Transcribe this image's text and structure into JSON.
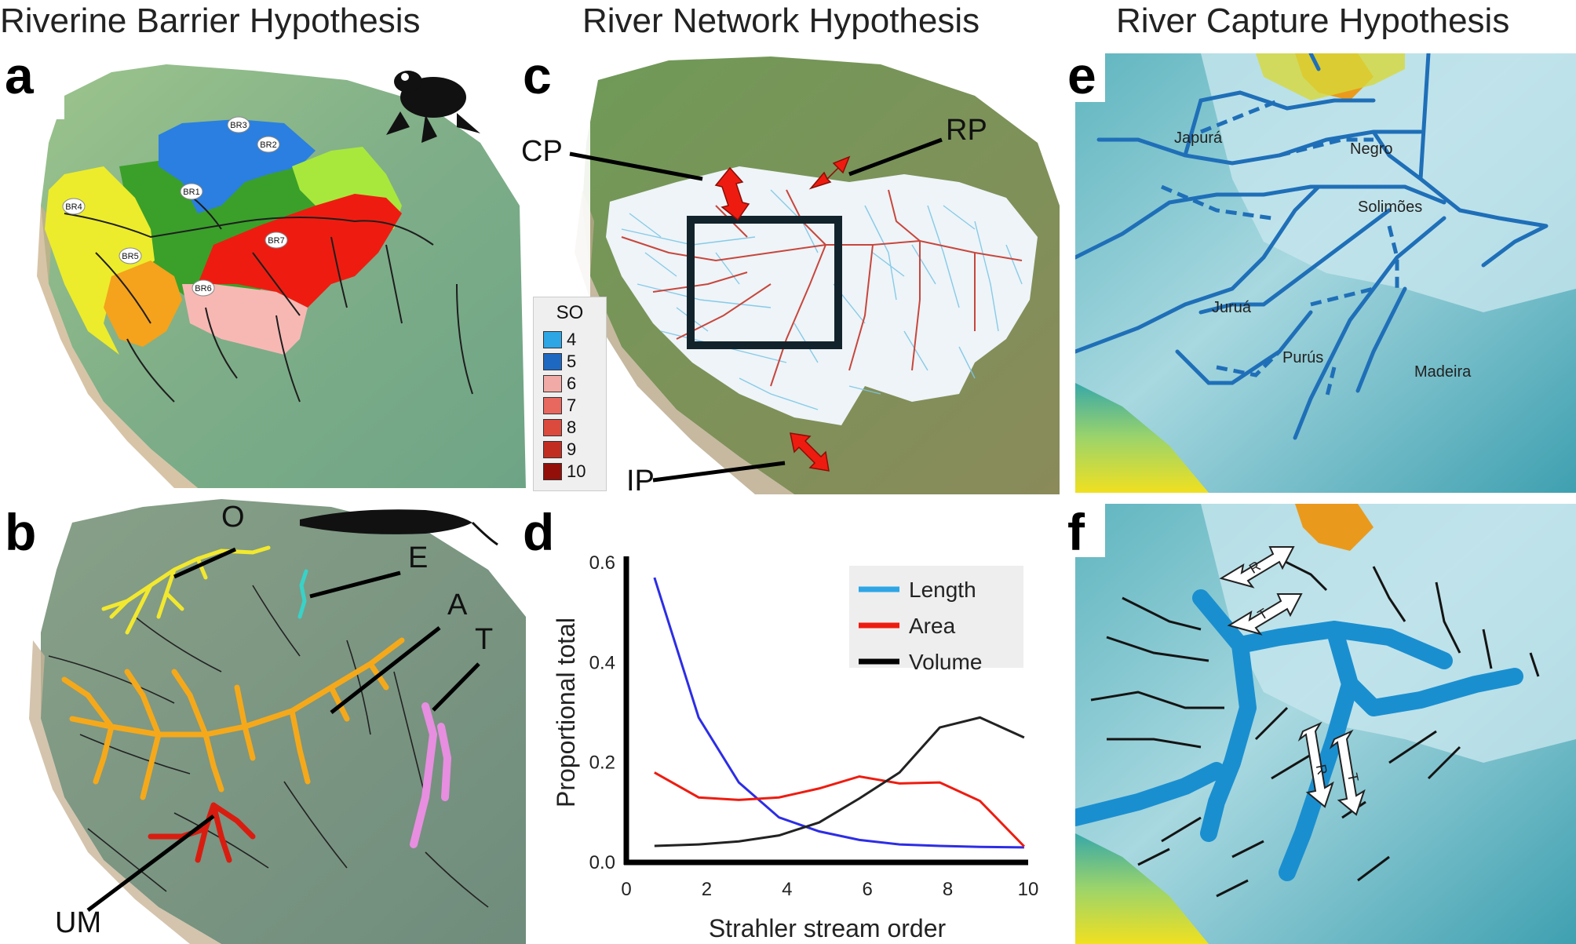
{
  "titles": {
    "riverine": "Riverine Barrier Hypothesis",
    "network": "River Network Hypothesis",
    "capture": "River Capture Hypothesis"
  },
  "panel_letters": {
    "a": "a",
    "b": "b",
    "c": "c",
    "d": "d",
    "e": "e",
    "f": "f"
  },
  "panel_a": {
    "regions": [
      "BR1",
      "BR2",
      "BR3",
      "BR4",
      "BR5",
      "BR6",
      "BR7"
    ],
    "colors": {
      "BR1": "#3aa02a",
      "BR2": "#a8e83c",
      "BR3": "#2a7fe0",
      "BR4": "#ecec2c",
      "BR5": "#f5a21c",
      "BR6": "#f7b8b4",
      "BR7": "#ee1c10"
    }
  },
  "panel_b": {
    "labels": {
      "o": "O",
      "e": "E",
      "a": "A",
      "t": "T",
      "um": "UM"
    },
    "colors": {
      "O": "#f2e82e",
      "E": "#38d2c8",
      "A": "#f5a91a",
      "T": "#e78ee0",
      "UM": "#d81d10"
    }
  },
  "panel_c": {
    "callouts": {
      "cp": "CP",
      "rp": "RP",
      "ip": "IP"
    },
    "legend_title": "SO",
    "legend": [
      {
        "label": "4",
        "color": "#2ea6e6"
      },
      {
        "label": "5",
        "color": "#1f68c2"
      },
      {
        "label": "6",
        "color": "#f2aaa6"
      },
      {
        "label": "7",
        "color": "#e8675f"
      },
      {
        "label": "8",
        "color": "#dc4a3e"
      },
      {
        "label": "9",
        "color": "#c22d22"
      },
      {
        "label": "10",
        "color": "#920f0a"
      }
    ]
  },
  "chart_data": {
    "type": "line",
    "title": "",
    "xlabel": "Strahler stream order",
    "ylabel": "Proportional total",
    "xlim": [
      0,
      10
    ],
    "ylim": [
      0,
      0.6
    ],
    "xticks": [
      "0",
      "2",
      "4",
      "6",
      "8",
      "10"
    ],
    "yticks": [
      "0.0",
      "0.2",
      "0.4",
      "0.6"
    ],
    "legend_position": "top-right",
    "legend_colors": {
      "Length": "#2ea6e6",
      "Area": "#ee1c10",
      "Volume": "#000000"
    },
    "series": [
      {
        "name": "Length",
        "color": "#2d2de6",
        "x": [
          0.7,
          1.8,
          2.8,
          3.8,
          4.8,
          5.8,
          6.8,
          7.8,
          8.8,
          9.9
        ],
        "y": [
          0.57,
          0.29,
          0.16,
          0.09,
          0.062,
          0.045,
          0.036,
          0.033,
          0.031,
          0.03
        ]
      },
      {
        "name": "Area",
        "color": "#ee1c10",
        "x": [
          0.7,
          1.8,
          2.8,
          3.8,
          4.8,
          5.8,
          6.8,
          7.8,
          8.8,
          9.9
        ],
        "y": [
          0.18,
          0.13,
          0.125,
          0.13,
          0.148,
          0.172,
          0.158,
          0.16,
          0.123,
          0.032
        ]
      },
      {
        "name": "Volume",
        "color": "#222222",
        "x": [
          0.7,
          1.8,
          2.8,
          3.8,
          4.8,
          5.8,
          6.8,
          7.8,
          8.8,
          9.9
        ],
        "y": [
          0.033,
          0.036,
          0.042,
          0.054,
          0.08,
          0.128,
          0.18,
          0.27,
          0.29,
          0.25
        ]
      }
    ]
  },
  "panel_e": {
    "rivers": {
      "japura": "Japurá",
      "negro": "Negro",
      "solimoes": "Solimões",
      "jurua": "Juruá",
      "purus": "Purús",
      "madeira": "Madeira"
    }
  },
  "panel_f": {
    "arrow_labels": [
      "R",
      "T",
      "R",
      "T"
    ]
  }
}
